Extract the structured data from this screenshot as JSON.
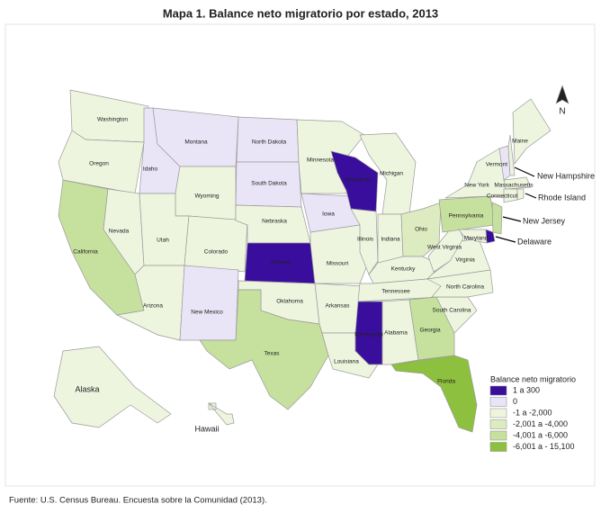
{
  "title": "Mapa 1. Balance neto migratorio por estado, 2013",
  "north": "N",
  "source": "Fuente: U.S. Census Bureau. Encuesta sobre la Comunidad (2013).",
  "legend": {
    "title": "Balance neto migratorio",
    "items": [
      {
        "label": "1 a 300",
        "color": "#3a0e9c"
      },
      {
        "label": "0",
        "color": "#e9e5f7"
      },
      {
        "label": "-1 a -2,000",
        "color": "#eef5df"
      },
      {
        "label": "-2,001 a  -4,000",
        "color": "#dcecc0"
      },
      {
        "label": "-4,001 a -6,000",
        "color": "#c6e09d"
      },
      {
        "label": "-6,001 a - 15,100",
        "color": "#8dc03e"
      }
    ]
  },
  "states": [
    {
      "name": "Washington",
      "class": 2
    },
    {
      "name": "Oregon",
      "class": 2
    },
    {
      "name": "California",
      "class": 4
    },
    {
      "name": "Nevada",
      "class": 2
    },
    {
      "name": "Idaho",
      "class": 1
    },
    {
      "name": "Montana",
      "class": 1
    },
    {
      "name": "Wyoming",
      "class": 2
    },
    {
      "name": "Utah",
      "class": 2
    },
    {
      "name": "Arizona",
      "class": 2
    },
    {
      "name": "Colorado",
      "class": 2
    },
    {
      "name": "New Mexico",
      "class": 1
    },
    {
      "name": "North Dakota",
      "class": 1
    },
    {
      "name": "South Dakota",
      "class": 1
    },
    {
      "name": "Nebraska",
      "class": 2
    },
    {
      "name": "Kansas",
      "class": 0
    },
    {
      "name": "Oklahoma",
      "class": 2
    },
    {
      "name": "Texas",
      "class": 4
    },
    {
      "name": "Minnesota",
      "class": 2
    },
    {
      "name": "Iowa",
      "class": 1
    },
    {
      "name": "Missouri",
      "class": 2
    },
    {
      "name": "Arkansas",
      "class": 2
    },
    {
      "name": "Louisiana",
      "class": 2
    },
    {
      "name": "Wisconsin",
      "class": 0
    },
    {
      "name": "Illinois",
      "class": 2
    },
    {
      "name": "Michigan",
      "class": 2
    },
    {
      "name": "Indiana",
      "class": 2
    },
    {
      "name": "Ohio",
      "class": 3
    },
    {
      "name": "Kentucky",
      "class": 2
    },
    {
      "name": "Tennessee",
      "class": 2
    },
    {
      "name": "Mississippi",
      "class": 0
    },
    {
      "name": "Alabama",
      "class": 2
    },
    {
      "name": "Georgia",
      "class": 4
    },
    {
      "name": "Florida",
      "class": 5
    },
    {
      "name": "South Carolina",
      "class": 2
    },
    {
      "name": "North Carolina",
      "class": 2
    },
    {
      "name": "Virginia",
      "class": 2
    },
    {
      "name": "West Virginia",
      "class": 2
    },
    {
      "name": "Pennsylvania",
      "class": 4
    },
    {
      "name": "New York",
      "class": 2
    },
    {
      "name": "Vermont",
      "class": 1
    },
    {
      "name": "New Hampshire",
      "class": 2
    },
    {
      "name": "Maine",
      "class": 2
    },
    {
      "name": "Massachusetts",
      "class": 2
    },
    {
      "name": "Connecticut",
      "class": 2
    },
    {
      "name": "Rhode Island",
      "class": 2
    },
    {
      "name": "New Jersey",
      "class": 4
    },
    {
      "name": "Delaware",
      "class": 0
    },
    {
      "name": "Maryland",
      "class": 2
    },
    {
      "name": "Alaska",
      "class": 2
    },
    {
      "name": "Hawaii",
      "class": 2
    }
  ]
}
